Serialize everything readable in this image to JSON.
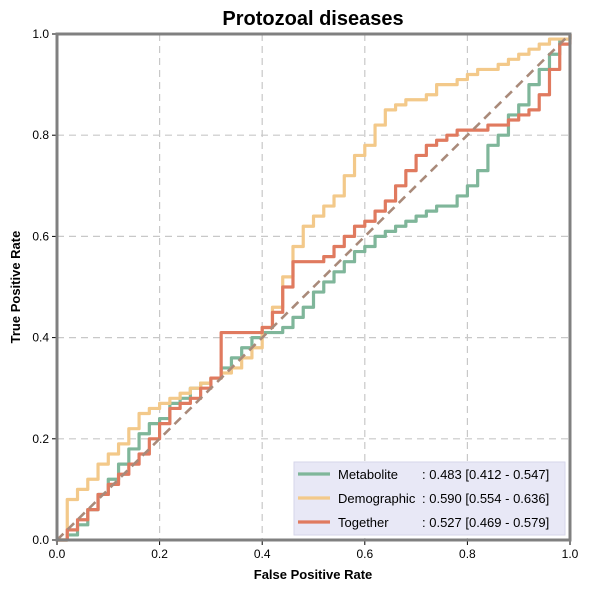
{
  "chart_data": {
    "type": "line",
    "title": "Protozoal diseases",
    "xlabel": "False Positive Rate",
    "ylabel": "True Positive Rate",
    "xlim": [
      0,
      1
    ],
    "ylim": [
      0,
      1
    ],
    "x_ticks": [
      "0.0",
      "0.2",
      "0.4",
      "0.6",
      "0.8",
      "1.0"
    ],
    "y_ticks": [
      "0.0",
      "0.2",
      "0.4",
      "0.6",
      "0.8",
      "1.0"
    ],
    "grid": true,
    "legend_position": "lower-right",
    "diagonal": {
      "x": [
        0,
        1
      ],
      "y": [
        0,
        1
      ],
      "color": "#a98a7a"
    },
    "series": [
      {
        "name": "Metabolite",
        "auc_text": ": 0.483 [0.412 - 0.547]",
        "color": "#7fb69a",
        "x": [
          0,
          0.02,
          0.04,
          0.06,
          0.08,
          0.1,
          0.12,
          0.14,
          0.16,
          0.18,
          0.2,
          0.22,
          0.24,
          0.26,
          0.28,
          0.3,
          0.32,
          0.34,
          0.36,
          0.38,
          0.4,
          0.42,
          0.44,
          0.46,
          0.48,
          0.5,
          0.52,
          0.54,
          0.56,
          0.58,
          0.6,
          0.62,
          0.64,
          0.66,
          0.68,
          0.7,
          0.72,
          0.74,
          0.76,
          0.78,
          0.8,
          0.82,
          0.84,
          0.86,
          0.88,
          0.9,
          0.92,
          0.94,
          0.96,
          0.98,
          1.0
        ],
        "y": [
          0,
          0.01,
          0.03,
          0.06,
          0.09,
          0.12,
          0.15,
          0.18,
          0.21,
          0.23,
          0.24,
          0.27,
          0.28,
          0.3,
          0.31,
          0.32,
          0.34,
          0.36,
          0.38,
          0.4,
          0.41,
          0.41,
          0.42,
          0.44,
          0.46,
          0.49,
          0.51,
          0.53,
          0.55,
          0.57,
          0.58,
          0.6,
          0.61,
          0.62,
          0.63,
          0.64,
          0.65,
          0.66,
          0.66,
          0.68,
          0.7,
          0.73,
          0.78,
          0.8,
          0.84,
          0.86,
          0.9,
          0.93,
          0.96,
          0.99,
          1.0
        ]
      },
      {
        "name": "Demographic",
        "auc_text": ": 0.590 [0.554 - 0.636]",
        "color": "#f3c98a",
        "x": [
          0,
          0.02,
          0.04,
          0.06,
          0.08,
          0.1,
          0.12,
          0.14,
          0.16,
          0.18,
          0.2,
          0.22,
          0.24,
          0.26,
          0.28,
          0.3,
          0.32,
          0.34,
          0.36,
          0.38,
          0.4,
          0.42,
          0.44,
          0.46,
          0.48,
          0.5,
          0.52,
          0.54,
          0.56,
          0.58,
          0.6,
          0.62,
          0.64,
          0.66,
          0.68,
          0.7,
          0.72,
          0.74,
          0.76,
          0.78,
          0.8,
          0.82,
          0.84,
          0.86,
          0.88,
          0.9,
          0.92,
          0.94,
          0.96,
          0.98,
          1.0
        ],
        "y": [
          0,
          0.08,
          0.1,
          0.12,
          0.15,
          0.17,
          0.19,
          0.22,
          0.25,
          0.26,
          0.27,
          0.28,
          0.29,
          0.3,
          0.31,
          0.32,
          0.33,
          0.34,
          0.36,
          0.38,
          0.42,
          0.46,
          0.52,
          0.58,
          0.62,
          0.64,
          0.66,
          0.68,
          0.72,
          0.76,
          0.78,
          0.82,
          0.85,
          0.86,
          0.87,
          0.87,
          0.88,
          0.9,
          0.9,
          0.91,
          0.92,
          0.93,
          0.93,
          0.94,
          0.95,
          0.96,
          0.97,
          0.98,
          0.99,
          0.99,
          1.0
        ]
      },
      {
        "name": "Together",
        "auc_text": ": 0.527 [0.469 - 0.579]",
        "color": "#e07a5f",
        "x": [
          0,
          0.02,
          0.04,
          0.06,
          0.08,
          0.1,
          0.12,
          0.14,
          0.16,
          0.18,
          0.2,
          0.22,
          0.24,
          0.26,
          0.28,
          0.3,
          0.32,
          0.34,
          0.36,
          0.38,
          0.4,
          0.42,
          0.44,
          0.46,
          0.48,
          0.5,
          0.52,
          0.54,
          0.56,
          0.58,
          0.6,
          0.62,
          0.64,
          0.66,
          0.68,
          0.7,
          0.72,
          0.74,
          0.76,
          0.78,
          0.8,
          0.82,
          0.84,
          0.86,
          0.88,
          0.9,
          0.92,
          0.94,
          0.96,
          0.98,
          1.0
        ],
        "y": [
          0,
          0.02,
          0.04,
          0.06,
          0.09,
          0.11,
          0.13,
          0.15,
          0.17,
          0.2,
          0.23,
          0.26,
          0.27,
          0.28,
          0.3,
          0.32,
          0.41,
          0.41,
          0.41,
          0.41,
          0.42,
          0.45,
          0.5,
          0.55,
          0.55,
          0.55,
          0.56,
          0.58,
          0.6,
          0.62,
          0.63,
          0.65,
          0.67,
          0.7,
          0.73,
          0.76,
          0.78,
          0.79,
          0.8,
          0.81,
          0.81,
          0.81,
          0.82,
          0.82,
          0.83,
          0.84,
          0.85,
          0.88,
          0.93,
          0.98,
          1.0
        ]
      }
    ]
  }
}
